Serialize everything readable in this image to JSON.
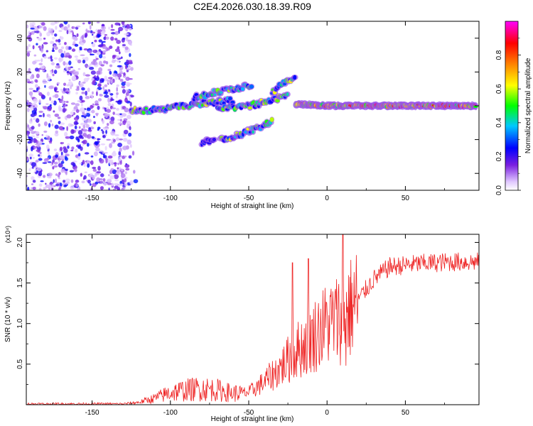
{
  "title": "C2E4.2026.030.18.39.R09",
  "chart_data": [
    {
      "type": "heatmap",
      "xlabel": "Height of straight line (km)",
      "ylabel": "Frequency (Hz)",
      "xlim": [
        -192,
        97
      ],
      "ylim": [
        -50,
        50
      ],
      "xticks": [
        -150,
        -100,
        -50,
        0,
        50
      ],
      "yticks": [
        -40,
        -20,
        0,
        20,
        40
      ],
      "colorbar": {
        "label": "Normalized spectral amplitude",
        "range": [
          0,
          1
        ],
        "ticks": [
          "0.0",
          "0.2",
          "0.4",
          "0.6",
          "0.8"
        ],
        "colors": [
          "#ffffff",
          "#e0c8ff",
          "#7a1fe0",
          "#0000ff",
          "#00c8ff",
          "#00ff00",
          "#ffff00",
          "#ff7f00",
          "#ff0000",
          "#ff00ff"
        ]
      },
      "noise_region": {
        "x_range": [
          -192,
          -125
        ],
        "freq_range": [
          -50,
          50
        ]
      },
      "features": [
        {
          "name": "main-trace-low",
          "x": [
            -125,
            -105,
            -90,
            -75,
            -60
          ],
          "freq": [
            -3,
            -2,
            0,
            2,
            3
          ]
        },
        {
          "name": "upper-branch",
          "x": [
            -85,
            -70,
            -55,
            -48
          ],
          "freq": [
            5,
            8,
            11,
            12
          ]
        },
        {
          "name": "middle-branch",
          "x": [
            -70,
            -55,
            -40,
            -25
          ],
          "freq": [
            -2,
            -1,
            2,
            6
          ]
        },
        {
          "name": "rising-streak",
          "x": [
            -35,
            -30,
            -25,
            -20
          ],
          "freq": [
            8,
            12,
            15,
            17
          ]
        },
        {
          "name": "lower-branch",
          "x": [
            -68,
            -55,
            -42,
            -35
          ],
          "freq": [
            -20,
            -17,
            -12,
            -9
          ]
        },
        {
          "name": "faint-lower-streak",
          "x": [
            -80,
            -72
          ],
          "freq": [
            -22,
            -20
          ]
        },
        {
          "name": "main-trace-high",
          "x": [
            -20,
            0,
            25,
            50,
            75,
            95
          ],
          "freq": [
            1,
            0,
            0,
            0,
            0,
            0
          ]
        }
      ]
    },
    {
      "type": "line",
      "xlabel": "Height of straight line (km)",
      "ylabel": "SNR (10 * v/v)",
      "y_multiplier": "(x10⁴)",
      "xlim": [
        -192,
        97
      ],
      "ylim": [
        0,
        2.1
      ],
      "xticks": [
        -150,
        -100,
        -50,
        0,
        50
      ],
      "yticks": [
        0.5,
        1.0,
        1.5,
        2.0
      ],
      "ytick_labels": [
        "0.5",
        "1.0",
        "1.5",
        "2.0"
      ],
      "color": "#ee2222",
      "trend": {
        "x": [
          -192,
          -130,
          -120,
          -110,
          -100,
          -90,
          -80,
          -70,
          -60,
          -50,
          -40,
          -30,
          -20,
          -10,
          0,
          10,
          20,
          30,
          40,
          50,
          60,
          70,
          80,
          90,
          97
        ],
        "y": [
          0.01,
          0.01,
          0.03,
          0.08,
          0.15,
          0.18,
          0.2,
          0.18,
          0.14,
          0.15,
          0.28,
          0.45,
          0.65,
          0.82,
          1.0,
          1.08,
          1.3,
          1.55,
          1.7,
          1.72,
          1.74,
          1.75,
          1.76,
          1.76,
          1.76
        ]
      },
      "spikes": [
        {
          "x": -22,
          "y": 1.75
        },
        {
          "x": -12,
          "y": 1.8
        },
        {
          "x": 10,
          "y": 2.1
        },
        {
          "x": 12,
          "y": 0.48
        }
      ]
    }
  ]
}
